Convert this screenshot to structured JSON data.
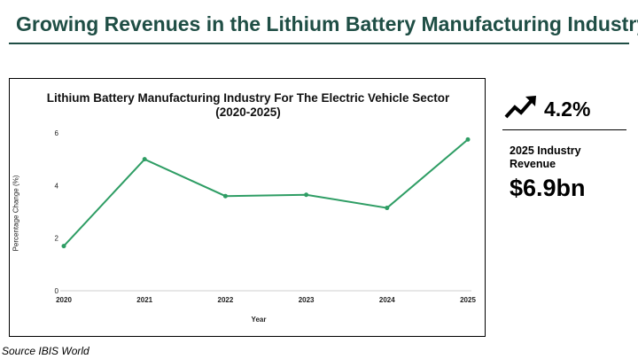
{
  "slide": {
    "title": "Growing Revenues in the Lithium Battery Manufacturing Industry",
    "source": "Source IBIS World"
  },
  "kpi": {
    "growth": "4.2%",
    "revenue_label": "2025 Industry Revenue",
    "revenue_value": "$6.9bn",
    "icon": "trending-up-icon"
  },
  "chart_data": {
    "type": "line",
    "title": "Lithium Battery Manufacturing Industry For The Electric Vehicle Sector (2020-2025)",
    "title_lines": [
      "Lithium Battery Manufacturing Industry For The Electric Vehicle Sector",
      "(2020-2025)"
    ],
    "xlabel": "Year",
    "ylabel": "Percentage Change (%)",
    "categories": [
      "2020",
      "2021",
      "2022",
      "2023",
      "2024",
      "2025"
    ],
    "values": [
      1.7,
      5.0,
      3.6,
      3.65,
      3.15,
      5.75
    ],
    "yticks": [
      "0",
      "2",
      "4",
      "6"
    ],
    "ylim": [
      0,
      6
    ],
    "grid": false,
    "line_color": "#2e9d64"
  }
}
